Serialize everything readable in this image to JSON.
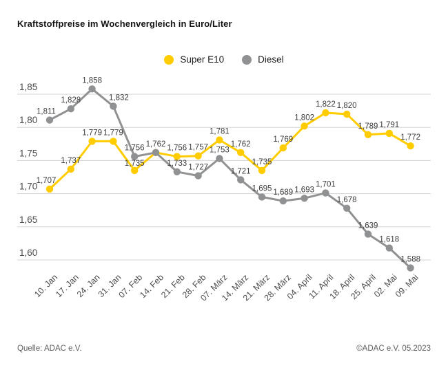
{
  "title": "Kraftstoffpreise im Wochenvergleich in Euro/Liter",
  "legend": [
    {
      "label": "Super E10",
      "color": "#FFCC00"
    },
    {
      "label": "Diesel",
      "color": "#8F9192"
    }
  ],
  "footer": {
    "source": "Quelle: ADAC e.V.",
    "copyright": "©ADAC e.V. 05.2023"
  },
  "chart_data": {
    "type": "line",
    "title": "Kraftstoffpreise im Wochenvergleich in Euro/Liter",
    "ylabel": "Euro/Liter",
    "grid": "horizontal",
    "legend_position": "top-center",
    "ylim": [
      1.575,
      1.875
    ],
    "ytick_values": [
      1.85,
      1.8,
      1.75,
      1.7,
      1.65,
      1.6
    ],
    "ytick_labels": [
      "1,85",
      "1,80",
      "1,75",
      "1,70",
      "1,65",
      "1,60"
    ],
    "categories": [
      "10. Jan",
      "17. Jan",
      "24. Jan",
      "31. Jan",
      "07. Feb",
      "14. Feb",
      "21. Feb",
      "28. Feb",
      "07. März",
      "14. März",
      "21. März",
      "28. März",
      "04. April",
      "11. April",
      "18. April",
      "25. April",
      "02. Mai",
      "09. Mai"
    ],
    "series": [
      {
        "name": "Super E10",
        "color": "#FFCC00",
        "values": [
          1.707,
          1.737,
          1.779,
          1.779,
          1.735,
          1.762,
          1.756,
          1.757,
          1.781,
          1.762,
          1.735,
          1.769,
          1.802,
          1.822,
          1.82,
          1.789,
          1.791,
          1.772
        ],
        "labels": [
          "1,707",
          "1,737",
          "1,779",
          "1,779",
          "1,735",
          null,
          "1,756",
          "1,757",
          "1,781",
          "1,762",
          "1,735",
          "1,769",
          "1,802",
          "1,822",
          "1,820",
          "1,789",
          "1,791",
          "1,772"
        ]
      },
      {
        "name": "Diesel",
        "color": "#8F9192",
        "values": [
          1.811,
          1.828,
          1.858,
          1.832,
          1.756,
          1.762,
          1.733,
          1.727,
          1.753,
          1.721,
          1.695,
          1.689,
          1.693,
          1.701,
          1.678,
          1.639,
          1.618,
          1.588
        ],
        "labels": [
          "1,811",
          "1,828",
          "1,858",
          "1,832",
          "1,756",
          "1,762",
          "1,733",
          "1,727",
          "1,753",
          "1,721",
          "1,695",
          "1,689",
          "1,693",
          "1,701",
          "1,678",
          "1,639",
          "1,618",
          "1,588"
        ]
      }
    ]
  }
}
